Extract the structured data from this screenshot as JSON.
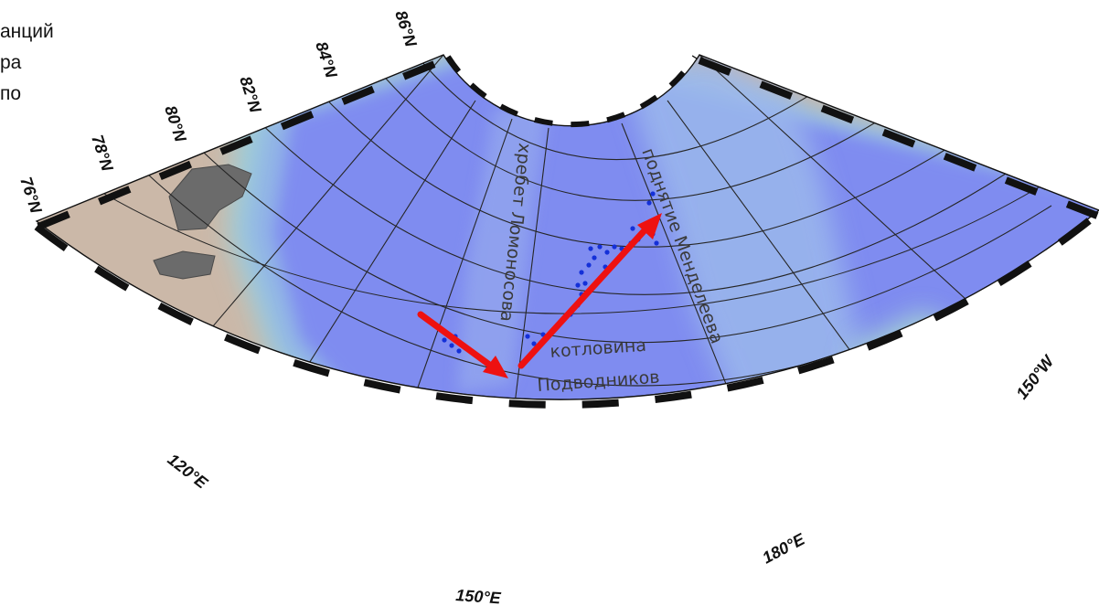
{
  "caption_fragment": [
    "анций",
    "ра",
    "по"
  ],
  "latitude_labels": [
    "76°N",
    "78°N",
    "80°N",
    "82°N",
    "84°N",
    "86°N"
  ],
  "longitude_labels": [
    "120°E",
    "150°E",
    "180°E",
    "150°W"
  ],
  "features": {
    "lomonosov_ridge": "хребет Ломоносова",
    "mendeleev_rise": "поднятие Менделеева",
    "podvodnikov_basin_line1": "котловина",
    "podvodnikov_basin_line2": "Подводников"
  },
  "colors": {
    "deep_ocean": "#7f8cf0",
    "shelf": "#cbb8a8",
    "land": "#6b6b6b",
    "arrow": "#ee1111",
    "station": "#1430d8"
  }
}
